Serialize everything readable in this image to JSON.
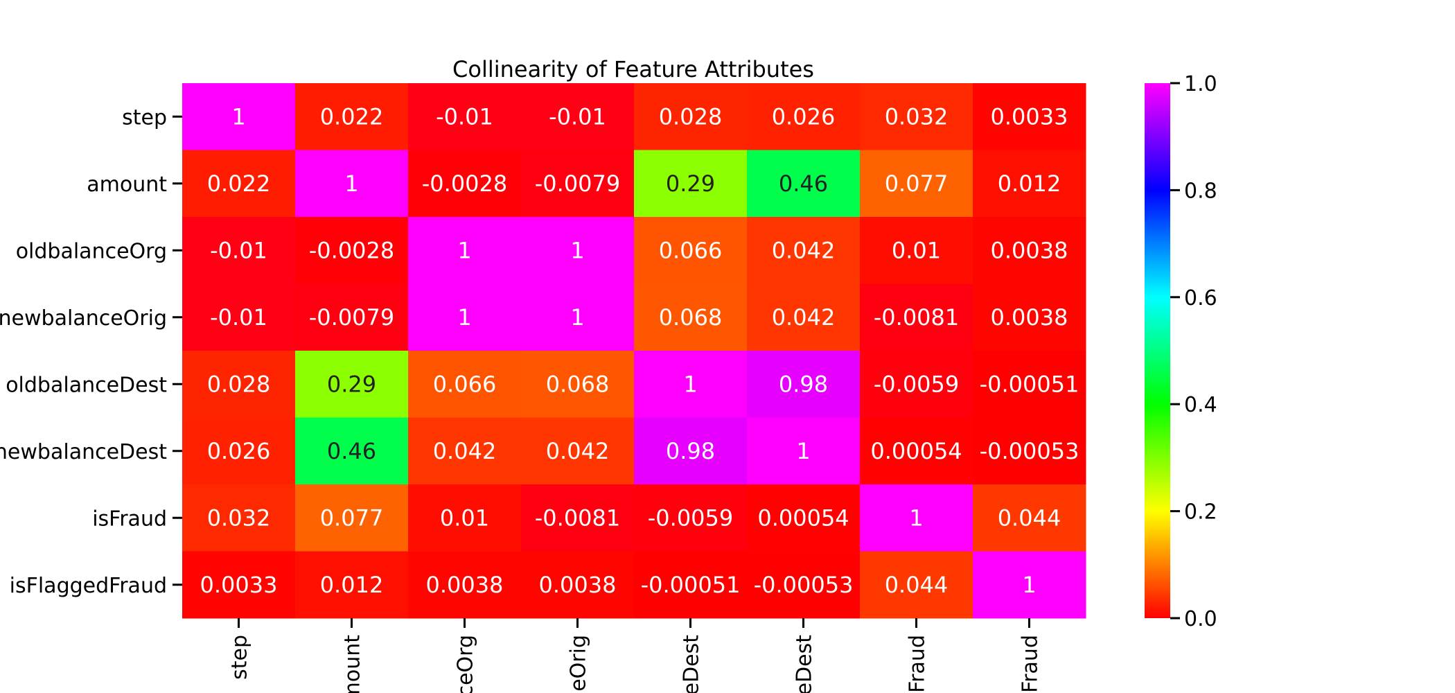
{
  "chart_data": {
    "type": "heatmap",
    "title": "Collinearity of Feature Attributes",
    "row_labels": [
      "step",
      "amount",
      "oldbalanceOrg",
      "newbalanceOrig",
      "oldbalanceDest",
      "newbalanceDest",
      "isFraud",
      "isFlaggedFraud"
    ],
    "col_labels_visible": [
      "step",
      "mount",
      "ceOrg",
      "eOrig",
      "eDest",
      "eDest",
      "Fraud",
      "Fraud"
    ],
    "matrix": [
      [
        1,
        0.022,
        -0.01,
        -0.01,
        0.028,
        0.026,
        0.032,
        0.0033
      ],
      [
        0.022,
        1,
        -0.0028,
        -0.0079,
        0.29,
        0.46,
        0.077,
        0.012
      ],
      [
        -0.01,
        -0.0028,
        1,
        1,
        0.066,
        0.042,
        0.01,
        0.0038
      ],
      [
        -0.01,
        -0.0079,
        1,
        1,
        0.068,
        0.042,
        -0.0081,
        0.0038
      ],
      [
        0.028,
        0.29,
        0.066,
        0.068,
        1,
        0.98,
        -0.0059,
        -0.00051
      ],
      [
        0.026,
        0.46,
        0.042,
        0.042,
        0.98,
        1,
        0.00054,
        -0.00053
      ],
      [
        0.032,
        0.077,
        0.01,
        -0.0081,
        -0.0059,
        0.00054,
        1,
        0.044
      ],
      [
        0.0033,
        0.012,
        0.0038,
        0.0038,
        -0.00051,
        -0.00053,
        0.044,
        1
      ]
    ],
    "colorbar": {
      "ticks": [
        "0.0",
        "0.2",
        "0.4",
        "0.6",
        "0.8",
        "1.0"
      ],
      "range": [
        0,
        1
      ],
      "colormap": "gist_rainbow_r"
    }
  }
}
